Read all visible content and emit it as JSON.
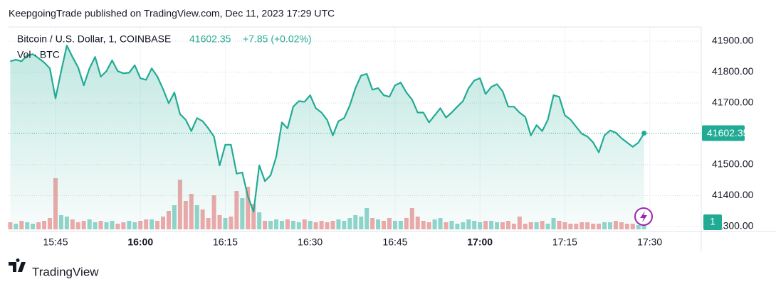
{
  "header": "KeepgoingTrade published on TradingView.com, Dec 11, 2023 17:29 UTC",
  "footer": "TradingView",
  "chart_data": {
    "type": "line",
    "title": "Bitcoin / U.S. Dollar, 1, COINBASE",
    "change": "+7.85 (+0.02%)",
    "volume_label": "Vol · BTC",
    "scale_badge": "1",
    "x": [
      937,
      938,
      939,
      940,
      941,
      942,
      943,
      944,
      945,
      946,
      947,
      948,
      949,
      950,
      951,
      952,
      953,
      954,
      955,
      956,
      957,
      958,
      959,
      960,
      961,
      962,
      963,
      964,
      965,
      966,
      967,
      968,
      969,
      970,
      971,
      972,
      973,
      974,
      975,
      976,
      977,
      978,
      979,
      980,
      981,
      982,
      983,
      984,
      985,
      986,
      987,
      988,
      989,
      990,
      991,
      992,
      993,
      994,
      995,
      996,
      997,
      998,
      999,
      1000,
      1001,
      1002,
      1003,
      1004,
      1005,
      1006,
      1007,
      1008,
      1009,
      1010,
      1011,
      1012,
      1013,
      1014,
      1015,
      1016,
      1017,
      1018,
      1019,
      1020,
      1021,
      1022,
      1023,
      1024,
      1025,
      1026,
      1027,
      1028,
      1029,
      1030,
      1031,
      1032,
      1033,
      1034,
      1035,
      1036,
      1037,
      1038,
      1039,
      1040,
      1041,
      1042,
      1043,
      1044,
      1045,
      1046,
      1047,
      1048,
      1049
    ],
    "series": [
      {
        "name": "Bitcoin / U.S. Dollar",
        "color": "#22ab94",
        "values": [
          41835,
          41840,
          41835,
          41854,
          41858,
          41845,
          41831,
          41812,
          41715,
          41803,
          41886,
          41849,
          41815,
          41757,
          41812,
          41849,
          41785,
          41803,
          41838,
          41803,
          41796,
          41798,
          41822,
          41780,
          41775,
          41812,
          41785,
          41745,
          41699,
          41734,
          41664,
          41646,
          41609,
          41651,
          41641,
          41618,
          41591,
          41498,
          41565,
          41565,
          41471,
          41475,
          41397,
          41348,
          41498,
          41447,
          41466,
          41526,
          41637,
          41618,
          41688,
          41706,
          41704,
          41725,
          41683,
          41669,
          41645,
          41595,
          41641,
          41651,
          41692,
          41748,
          41789,
          41794,
          41743,
          41748,
          41725,
          41720,
          41757,
          41766,
          41734,
          41711,
          41669,
          41669,
          41637,
          41660,
          41683,
          41653,
          41669,
          41688,
          41706,
          41748,
          41773,
          41780,
          41729,
          41752,
          41761,
          41738,
          41688,
          41688,
          41669,
          41655,
          41595,
          41628,
          41609,
          41646,
          41725,
          41720,
          41660,
          41646,
          41623,
          41600,
          41591,
          41572,
          41540,
          41595,
          41611,
          41604,
          41586,
          41572,
          41558,
          41572,
          41602.35
        ]
      },
      {
        "name": "Vol",
        "axis": "volume",
        "up_color": "#93d5cb",
        "down_color": "#f1a9a9",
        "values": [
          5,
          4,
          6,
          5,
          4,
          5,
          6,
          8,
          36,
          10,
          9,
          7,
          5,
          6,
          7,
          5,
          6,
          5,
          6,
          4,
          5,
          6,
          5,
          6,
          7,
          7,
          6,
          9,
          13,
          17,
          35,
          20,
          25,
          17,
          14,
          8,
          24,
          10,
          8,
          9,
          27,
          22,
          30,
          18,
          12,
          6,
          6,
          7,
          6,
          7,
          6,
          5,
          7,
          6,
          5,
          6,
          5,
          6,
          7,
          6,
          8,
          10,
          9,
          15,
          8,
          7,
          6,
          8,
          6,
          6,
          8,
          15,
          9,
          6,
          5,
          7,
          8,
          5,
          6,
          4,
          5,
          7,
          6,
          5,
          6,
          6,
          5,
          5,
          6,
          4,
          9,
          4,
          5,
          5,
          6,
          4,
          8,
          6,
          5,
          4,
          4,
          5,
          5,
          4,
          4,
          5,
          5,
          6,
          5,
          4,
          4,
          3,
          4
        ]
      }
    ],
    "xlim": [
      936.7,
      1059.1
    ],
    "xticks": [
      {
        "value": 945,
        "label": "15:45"
      },
      {
        "value": 960,
        "label": "16:00",
        "bold": true
      },
      {
        "value": 975,
        "label": "16:15"
      },
      {
        "value": 990,
        "label": "16:30"
      },
      {
        "value": 1005,
        "label": "16:45"
      },
      {
        "value": 1020,
        "label": "17:00",
        "bold": true
      },
      {
        "value": 1035,
        "label": "17:15"
      },
      {
        "value": 1050,
        "label": "17:30"
      }
    ],
    "ylim": [
      41284,
      41946
    ],
    "yticks": [
      {
        "value": 41900,
        "label": "41900.00"
      },
      {
        "value": 41800,
        "label": "41800.00"
      },
      {
        "value": 41700,
        "label": "41700.00"
      },
      {
        "value": 41500,
        "label": "41500.00"
      },
      {
        "value": 41400,
        "label": "41400.00"
      },
      {
        "value": 41300,
        "label": "41300.00"
      }
    ],
    "volume_lim": [
      0,
      50
    ],
    "grid": true
  }
}
